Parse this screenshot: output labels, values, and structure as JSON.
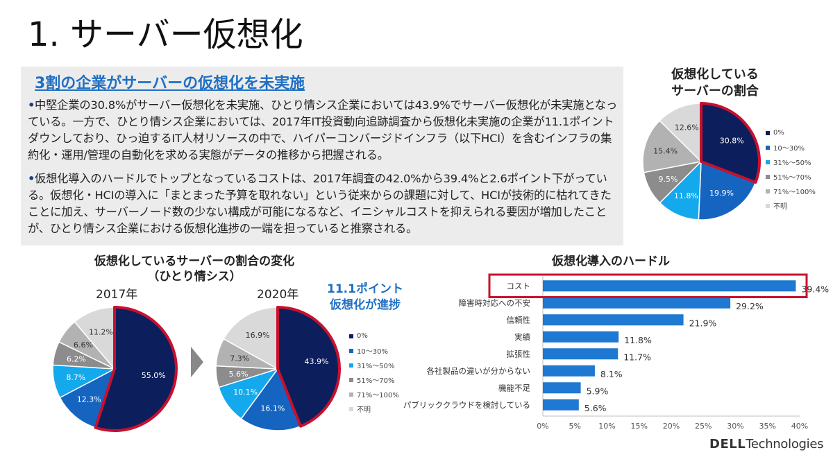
{
  "slide": {
    "title": "1. サーバー仮想化",
    "summary_heading": "3割の企業がサーバーの仮想化を未実施",
    "bullets": [
      "中堅企業の30.8%がサーバー仮想化を未実施、ひとり情シス企業においては43.9%でサーバー仮想化が未実施となっている。一方で、ひとり情シス企業においては、2017年IT投資動向追跡調査から仮想化未実施の企業が11.1ポイントダウンしており、ひっ迫するIT人材リソースの中で、ハイパーコンバージドインフラ（以下HCI）を含むインフラの集約化・運用/管理の自動化を求める実態がデータの推移から把握される。",
      "仮想化導入のハードルでトップとなっているコストは、2017年調査の42.0%から39.4%と2.6ポイント下がっている。仮想化・HCIの導入に「まとまった予算を取れない」という従来からの課題に対して、HCIが技術的に枯れてきたことに加え、サーバーノード数の少ない構成が可能になるなど、イニシャルコストを抑えられる要因が増加したことが、ひとり情シス企業における仮想化進捗の一端を担っていると推察される。"
    ],
    "callout": [
      "11.1ポイント",
      "仮想化が進捗"
    ],
    "brand_bold": "DELL",
    "brand_rest": "Technologies"
  },
  "colors": {
    "c0": "#0c1f5c",
    "c1": "#1565c0",
    "c2": "#14a9ec",
    "c3": "#8c8c8c",
    "c4": "#b2b2b2",
    "c5": "#d9d9d9",
    "highlight": "#c8102e",
    "bar": "#1f78d1"
  },
  "legend_labels": [
    "0%",
    "10～30%",
    "31%～50%",
    "51%～70%",
    "71%～100%",
    "不明"
  ],
  "chart_data": [
    {
      "type": "pie",
      "title": "仮想化している サーバーの割合",
      "title_lines": [
        "仮想化している",
        "サーバーの割合"
      ],
      "categories": [
        "0%",
        "10～30%",
        "31%～50%",
        "51%～70%",
        "71%～100%",
        "不明"
      ],
      "values": [
        30.8,
        19.9,
        11.8,
        9.5,
        15.4,
        12.6
      ],
      "labels": [
        "30.8%",
        "19.9%",
        "11.8%",
        "9.5%",
        "15.4%",
        "12.6%"
      ],
      "highlight_index": 0,
      "legend": "right"
    },
    {
      "type": "pie",
      "title": "仮想化しているサーバーの割合の変化（ひとり情シス）",
      "title_lines": [
        "仮想化しているサーバーの割合の変化",
        "（ひとり情シス）"
      ],
      "subtitle": "2017年",
      "categories": [
        "0%",
        "10～30%",
        "31%～50%",
        "51%～70%",
        "71%～100%",
        "不明"
      ],
      "values": [
        55.0,
        12.3,
        8.7,
        6.2,
        6.6,
        11.2
      ],
      "labels": [
        "55.0%",
        "12.3%",
        "8.7%",
        "6.2%",
        "6.6%",
        "11.2%"
      ],
      "highlight_index": 0
    },
    {
      "type": "pie",
      "subtitle": "2020年",
      "categories": [
        "0%",
        "10～30%",
        "31%～50%",
        "51%～70%",
        "71%～100%",
        "不明"
      ],
      "values": [
        43.9,
        16.1,
        10.1,
        5.6,
        7.3,
        16.9
      ],
      "labels": [
        "43.9%",
        "16.1%",
        "10.1%",
        "5.6%",
        "7.3%",
        "16.9%"
      ],
      "highlight_index": 0,
      "legend": "right"
    },
    {
      "type": "bar",
      "orientation": "horizontal",
      "title": "仮想化導入のハードル",
      "categories": [
        "コスト",
        "障害時対応への不安",
        "信頼性",
        "実績",
        "拡張性",
        "各社製品の違いが分からない",
        "機能不足",
        "パブリッククラウドを検討している"
      ],
      "values": [
        39.4,
        29.2,
        21.9,
        11.8,
        11.7,
        8.1,
        5.9,
        5.6
      ],
      "labels": [
        "39.4%",
        "29.2%",
        "21.9%",
        "11.8%",
        "11.7%",
        "8.1%",
        "5.9%",
        "5.6%"
      ],
      "xlim": [
        0,
        40
      ],
      "xticks": [
        "0%",
        "5%",
        "10%",
        "15%",
        "20%",
        "25%",
        "30%",
        "35%",
        "40%"
      ],
      "highlight_index": 0,
      "grid": false
    }
  ]
}
